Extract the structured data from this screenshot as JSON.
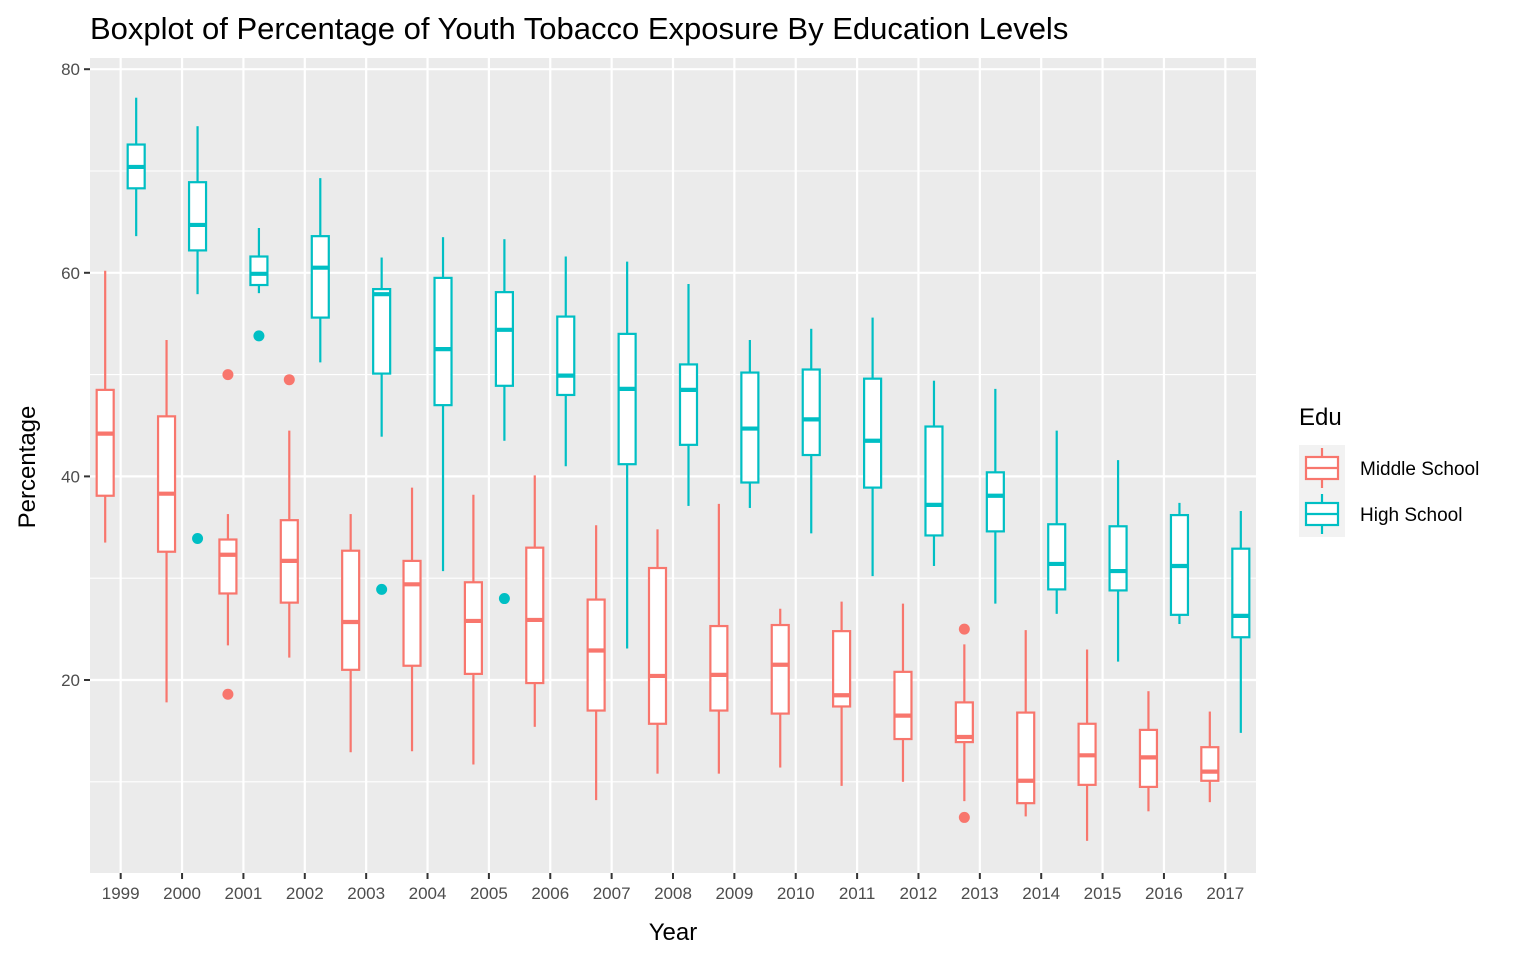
{
  "chart_data": {
    "type": "boxplot",
    "title": "Boxplot of Percentage of Youth Tobacco Exposure By Education Levels",
    "xlabel": "Year",
    "ylabel": "Percentage",
    "ylim": [
      1,
      80
    ],
    "yticks": [
      20,
      40,
      60,
      80
    ],
    "grid": true,
    "legend": {
      "title": "Edu",
      "position": "right"
    },
    "categories": [
      "1999",
      "2000",
      "2001",
      "2002",
      "2003",
      "2004",
      "2005",
      "2006",
      "2007",
      "2008",
      "2009",
      "2010",
      "2011",
      "2012",
      "2013",
      "2014",
      "2015",
      "2016",
      "2017"
    ],
    "series": [
      {
        "name": "Middle School",
        "color": "#F8766D",
        "boxes": [
          {
            "lower": 33.5,
            "q1": 38.1,
            "median": 44.2,
            "q3": 48.5,
            "upper": 60.2,
            "outliers": []
          },
          {
            "lower": 17.8,
            "q1": 32.6,
            "median": 38.3,
            "q3": 45.9,
            "upper": 53.4,
            "outliers": []
          },
          {
            "lower": 23.4,
            "q1": 28.5,
            "median": 32.3,
            "q3": 33.8,
            "upper": 36.3,
            "outliers": [
              50.0,
              18.6
            ]
          },
          {
            "lower": 22.2,
            "q1": 27.6,
            "median": 31.7,
            "q3": 35.7,
            "upper": 44.5,
            "outliers": [
              49.5
            ]
          },
          {
            "lower": 12.9,
            "q1": 21.0,
            "median": 25.7,
            "q3": 32.7,
            "upper": 36.3,
            "outliers": []
          },
          {
            "lower": 13.0,
            "q1": 21.4,
            "median": 29.4,
            "q3": 31.7,
            "upper": 38.9,
            "outliers": []
          },
          {
            "lower": 11.7,
            "q1": 20.6,
            "median": 25.8,
            "q3": 29.6,
            "upper": 38.2,
            "outliers": []
          },
          {
            "lower": 15.4,
            "q1": 19.7,
            "median": 25.9,
            "q3": 33.0,
            "upper": 40.1,
            "outliers": []
          },
          {
            "lower": 8.2,
            "q1": 17.0,
            "median": 22.9,
            "q3": 27.9,
            "upper": 35.2,
            "outliers": []
          },
          {
            "lower": 10.8,
            "q1": 15.7,
            "median": 20.4,
            "q3": 31.0,
            "upper": 34.8,
            "outliers": []
          },
          {
            "lower": 10.8,
            "q1": 17.0,
            "median": 20.5,
            "q3": 25.3,
            "upper": 37.3,
            "outliers": []
          },
          {
            "lower": 11.4,
            "q1": 16.7,
            "median": 21.5,
            "q3": 25.4,
            "upper": 27.0,
            "outliers": []
          },
          {
            "lower": 9.6,
            "q1": 17.4,
            "median": 18.5,
            "q3": 24.8,
            "upper": 27.7,
            "outliers": []
          },
          {
            "lower": 10.0,
            "q1": 14.2,
            "median": 16.5,
            "q3": 20.8,
            "upper": 27.5,
            "outliers": []
          },
          {
            "lower": 8.1,
            "q1": 13.9,
            "median": 14.4,
            "q3": 17.8,
            "upper": 23.5,
            "outliers": [
              25.0,
              6.5
            ]
          },
          {
            "lower": 6.6,
            "q1": 7.9,
            "median": 10.1,
            "q3": 16.8,
            "upper": 24.9,
            "outliers": []
          },
          {
            "lower": 4.2,
            "q1": 9.7,
            "median": 12.6,
            "q3": 15.7,
            "upper": 23.0,
            "outliers": []
          },
          {
            "lower": 7.1,
            "q1": 9.5,
            "median": 12.4,
            "q3": 15.1,
            "upper": 18.9,
            "outliers": []
          },
          {
            "lower": 8.0,
            "q1": 10.1,
            "median": 11.0,
            "q3": 13.4,
            "upper": 16.9,
            "outliers": []
          }
        ]
      },
      {
        "name": "High School",
        "color": "#00BFC4",
        "boxes": [
          {
            "lower": 63.6,
            "q1": 68.3,
            "median": 70.4,
            "q3": 72.6,
            "upper": 77.2,
            "outliers": []
          },
          {
            "lower": 57.9,
            "q1": 62.2,
            "median": 64.7,
            "q3": 68.9,
            "upper": 74.4,
            "outliers": [
              33.9
            ]
          },
          {
            "lower": 58.0,
            "q1": 58.8,
            "median": 59.9,
            "q3": 61.6,
            "upper": 64.4,
            "outliers": [
              53.8
            ]
          },
          {
            "lower": 51.2,
            "q1": 55.6,
            "median": 60.5,
            "q3": 63.6,
            "upper": 69.3,
            "outliers": []
          },
          {
            "lower": 43.9,
            "q1": 50.1,
            "median": 57.9,
            "q3": 58.4,
            "upper": 61.5,
            "outliers": [
              28.9
            ]
          },
          {
            "lower": 30.7,
            "q1": 47.0,
            "median": 52.5,
            "q3": 59.5,
            "upper": 63.5,
            "outliers": []
          },
          {
            "lower": 43.5,
            "q1": 48.9,
            "median": 54.4,
            "q3": 58.1,
            "upper": 63.3,
            "outliers": [
              28.0
            ]
          },
          {
            "lower": 41.0,
            "q1": 48.0,
            "median": 49.9,
            "q3": 55.7,
            "upper": 61.6,
            "outliers": []
          },
          {
            "lower": 23.1,
            "q1": 41.2,
            "median": 48.6,
            "q3": 54.0,
            "upper": 61.1,
            "outliers": []
          },
          {
            "lower": 37.1,
            "q1": 43.1,
            "median": 48.5,
            "q3": 51.0,
            "upper": 58.9,
            "outliers": []
          },
          {
            "lower": 36.9,
            "q1": 39.4,
            "median": 44.7,
            "q3": 50.2,
            "upper": 53.4,
            "outliers": []
          },
          {
            "lower": 34.4,
            "q1": 42.1,
            "median": 45.6,
            "q3": 50.5,
            "upper": 54.5,
            "outliers": []
          },
          {
            "lower": 30.2,
            "q1": 38.9,
            "median": 43.5,
            "q3": 49.6,
            "upper": 55.6,
            "outliers": []
          },
          {
            "lower": 31.2,
            "q1": 34.2,
            "median": 37.2,
            "q3": 44.9,
            "upper": 49.4,
            "outliers": []
          },
          {
            "lower": 27.5,
            "q1": 34.6,
            "median": 38.1,
            "q3": 40.4,
            "upper": 48.6,
            "outliers": []
          },
          {
            "lower": 26.5,
            "q1": 28.9,
            "median": 31.4,
            "q3": 35.3,
            "upper": 44.5,
            "outliers": []
          },
          {
            "lower": 21.8,
            "q1": 28.8,
            "median": 30.7,
            "q3": 35.1,
            "upper": 41.6,
            "outliers": []
          },
          {
            "lower": 25.5,
            "q1": 26.4,
            "median": 31.2,
            "q3": 36.2,
            "upper": 37.4,
            "outliers": []
          },
          {
            "lower": 14.8,
            "q1": 24.2,
            "median": 26.3,
            "q3": 32.9,
            "upper": 36.6,
            "outliers": []
          }
        ]
      }
    ]
  }
}
